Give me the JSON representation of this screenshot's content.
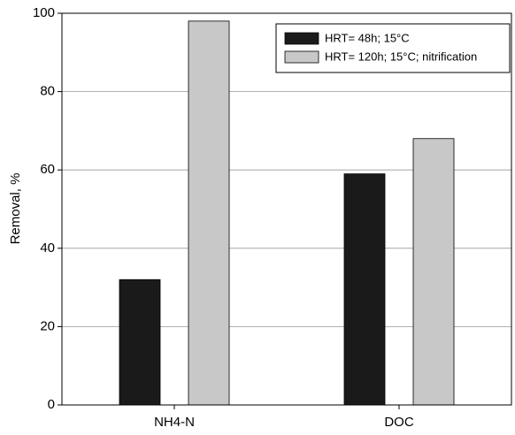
{
  "chart_data": {
    "type": "bar",
    "y_label": "Removal, %",
    "categories": [
      "NH4-N",
      "DOC"
    ],
    "series": [
      {
        "name": "HRT= 48h; 15°C",
        "color": "#1a1a1a",
        "values": [
          32,
          59
        ]
      },
      {
        "name": "HRT= 120h; 15°C; nitrification",
        "color": "#c8c8c8",
        "values": [
          98,
          68
        ]
      }
    ],
    "ylim": [
      0,
      100
    ],
    "yticks": [
      0,
      20,
      40,
      60,
      80,
      100
    ],
    "grid": true,
    "legend": "upper right"
  }
}
